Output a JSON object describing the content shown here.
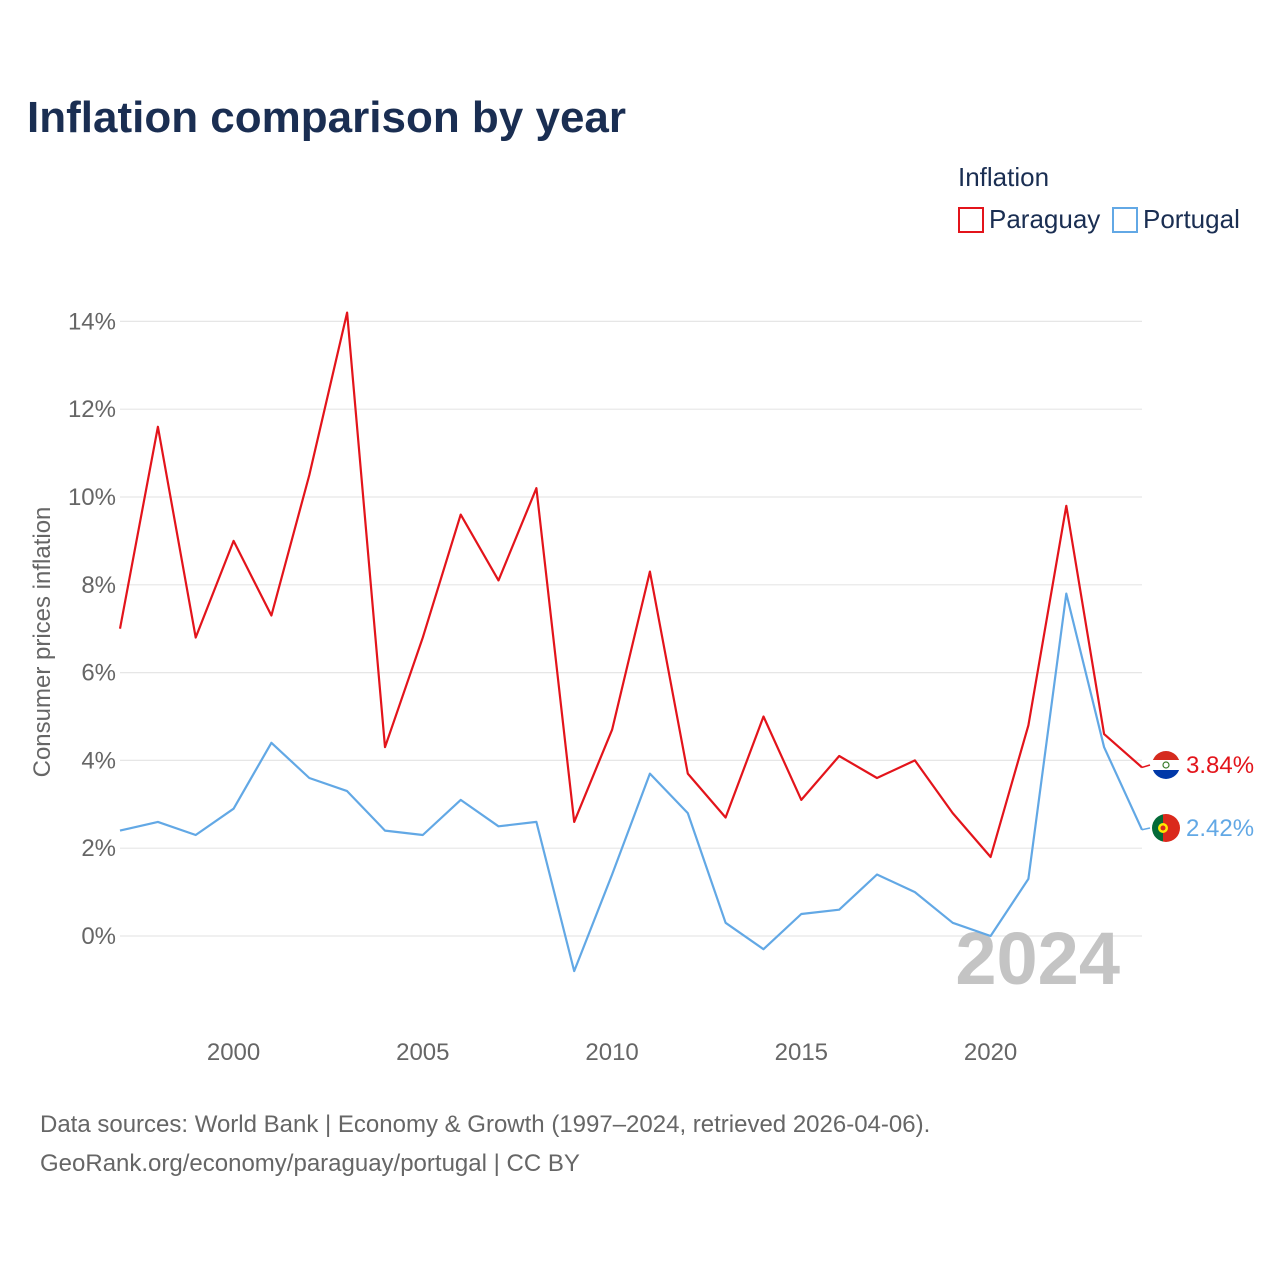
{
  "title": "Inflation comparison by year",
  "legend": {
    "title": "Inflation",
    "items": [
      {
        "label": "Paraguay",
        "color": "#e3141b"
      },
      {
        "label": "Portugal",
        "color": "#62a8e5"
      }
    ]
  },
  "ylabel": "Consumer prices inflation",
  "watermark_year": "2024",
  "end_labels": {
    "paraguay": "3.84%",
    "portugal": "2.42%"
  },
  "source_line1": "Data sources: World Bank | Economy & Growth (1997–2024, retrieved 2026-04-06).",
  "source_line2": "GeoRank.org/economy/paraguay/portugal | CC BY",
  "chart_data": {
    "type": "line",
    "title": "Inflation comparison by year",
    "xlabel": "",
    "ylabel": "Consumer prices inflation",
    "x": [
      1997,
      1998,
      1999,
      2000,
      2001,
      2002,
      2003,
      2004,
      2005,
      2006,
      2007,
      2008,
      2009,
      2010,
      2011,
      2012,
      2013,
      2014,
      2015,
      2016,
      2017,
      2018,
      2019,
      2020,
      2021,
      2022,
      2023,
      2024
    ],
    "xlim": [
      1997,
      2024
    ],
    "ylim": [
      -2,
      14.5
    ],
    "x_ticks": [
      2000,
      2005,
      2010,
      2015,
      2020
    ],
    "y_ticks": [
      0,
      2,
      4,
      6,
      8,
      10,
      12,
      14
    ],
    "y_tick_labels": [
      "0%",
      "2%",
      "4%",
      "6%",
      "8%",
      "10%",
      "12%",
      "14%"
    ],
    "grid": true,
    "legend_position": "top-right",
    "series": [
      {
        "name": "Paraguay",
        "color": "#e3141b",
        "values": [
          7.0,
          11.6,
          6.8,
          9.0,
          7.3,
          10.5,
          14.2,
          4.3,
          6.8,
          9.6,
          8.1,
          10.2,
          2.6,
          4.7,
          8.3,
          3.7,
          2.7,
          5.0,
          3.1,
          4.1,
          3.6,
          4.0,
          2.8,
          1.8,
          4.8,
          9.8,
          4.6,
          3.84
        ]
      },
      {
        "name": "Portugal",
        "color": "#62a8e5",
        "values": [
          2.4,
          2.6,
          2.3,
          2.9,
          4.4,
          3.6,
          3.3,
          2.4,
          2.3,
          3.1,
          2.5,
          2.6,
          -0.8,
          1.4,
          3.7,
          2.8,
          0.3,
          -0.3,
          0.5,
          0.6,
          1.4,
          1.0,
          0.3,
          0.0,
          1.3,
          7.8,
          4.3,
          2.42
        ]
      }
    ]
  }
}
